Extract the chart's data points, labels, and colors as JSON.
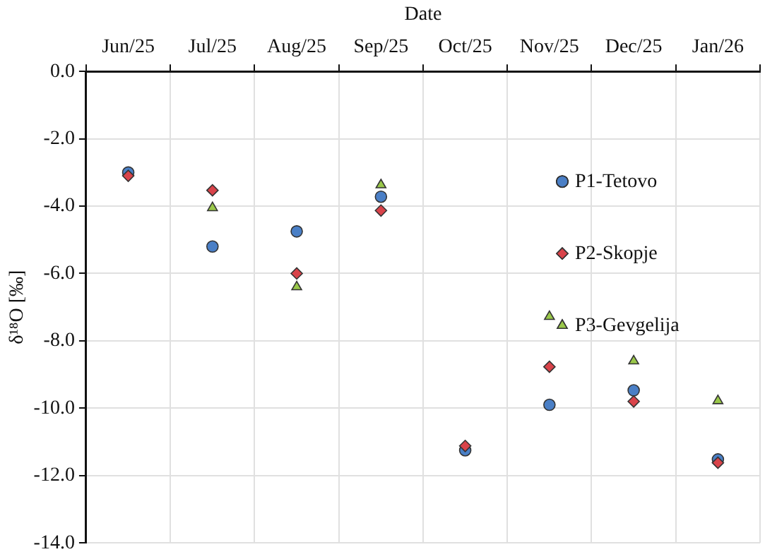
{
  "chart_data": {
    "type": "scatter",
    "xlabel": "Date",
    "ylabel": "δ¹⁸O [‰]",
    "categories": [
      "Jun/25",
      "Jul/25",
      "Aug/25",
      "Sep/25",
      "Oct/25",
      "Nov/25",
      "Dec/25",
      "Jan/26"
    ],
    "series": [
      {
        "name": "P1-Tetovo",
        "color": "#4a7fc6",
        "marker": "circle",
        "values": [
          -3.0,
          -5.2,
          -4.75,
          -3.72,
          -11.25,
          -9.9,
          -9.47,
          -11.52
        ]
      },
      {
        "name": "P2-Skopje",
        "color": "#d9434a",
        "marker": "diamond",
        "values": [
          -3.1,
          -3.53,
          -6.0,
          -4.13,
          -11.12,
          -8.77,
          -9.8,
          -11.62
        ]
      },
      {
        "name": "P3-Gevgelija",
        "color": "#9ac84a",
        "marker": "triangle",
        "values": [
          null,
          -4.05,
          -6.4,
          -3.37,
          null,
          -7.28,
          -8.6,
          -9.78
        ]
      }
    ],
    "ylim": [
      -14,
      0
    ],
    "yticks": [
      {
        "value": -14,
        "label": "-14.0"
      },
      {
        "value": -12,
        "label": "-12.0"
      },
      {
        "value": -10,
        "label": "-10.0"
      },
      {
        "value": -8,
        "label": "-8.0"
      },
      {
        "value": -6,
        "label": "-6.0"
      },
      {
        "value": -4,
        "label": "-4.0"
      },
      {
        "value": -2,
        "label": "-2.0"
      },
      {
        "value": 0,
        "label": "0.0"
      }
    ],
    "grid": true,
    "legend": "top right"
  }
}
